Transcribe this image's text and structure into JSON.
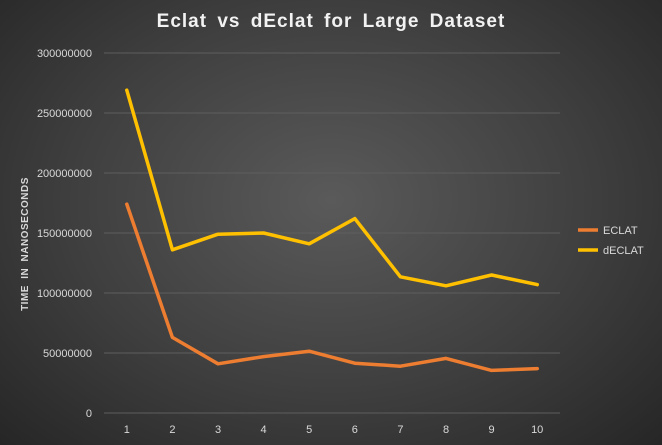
{
  "chart_data": {
    "type": "line",
    "title": "Eclat vs dEclat for Large Dataset",
    "xlabel": "",
    "ylabel": "TIME IN NANOSECONDS",
    "x": [
      1,
      2,
      3,
      4,
      5,
      6,
      7,
      8,
      9,
      10
    ],
    "x_tick_labels": [
      "1",
      "2",
      "3",
      "4",
      "5",
      "6",
      "7",
      "8",
      "9",
      "10"
    ],
    "ylim": [
      0,
      300000000
    ],
    "y_tick_labels": [
      "0",
      "50000000",
      "100000000",
      "150000000",
      "200000000",
      "250000000",
      "300000000"
    ],
    "grid": true,
    "legend_position": "right",
    "series": [
      {
        "name": "ECLAT",
        "color": "#ed7d31",
        "values": [
          174000000,
          63000000,
          41000000,
          47000000,
          51500000,
          41500000,
          39000000,
          45500000,
          35500000,
          37000000
        ]
      },
      {
        "name": "dECLAT",
        "color": "#ffc000",
        "values": [
          269000000,
          136000000,
          149000000,
          150000000,
          141000000,
          162000000,
          113500000,
          106000000,
          115000000,
          107000000
        ]
      }
    ]
  }
}
